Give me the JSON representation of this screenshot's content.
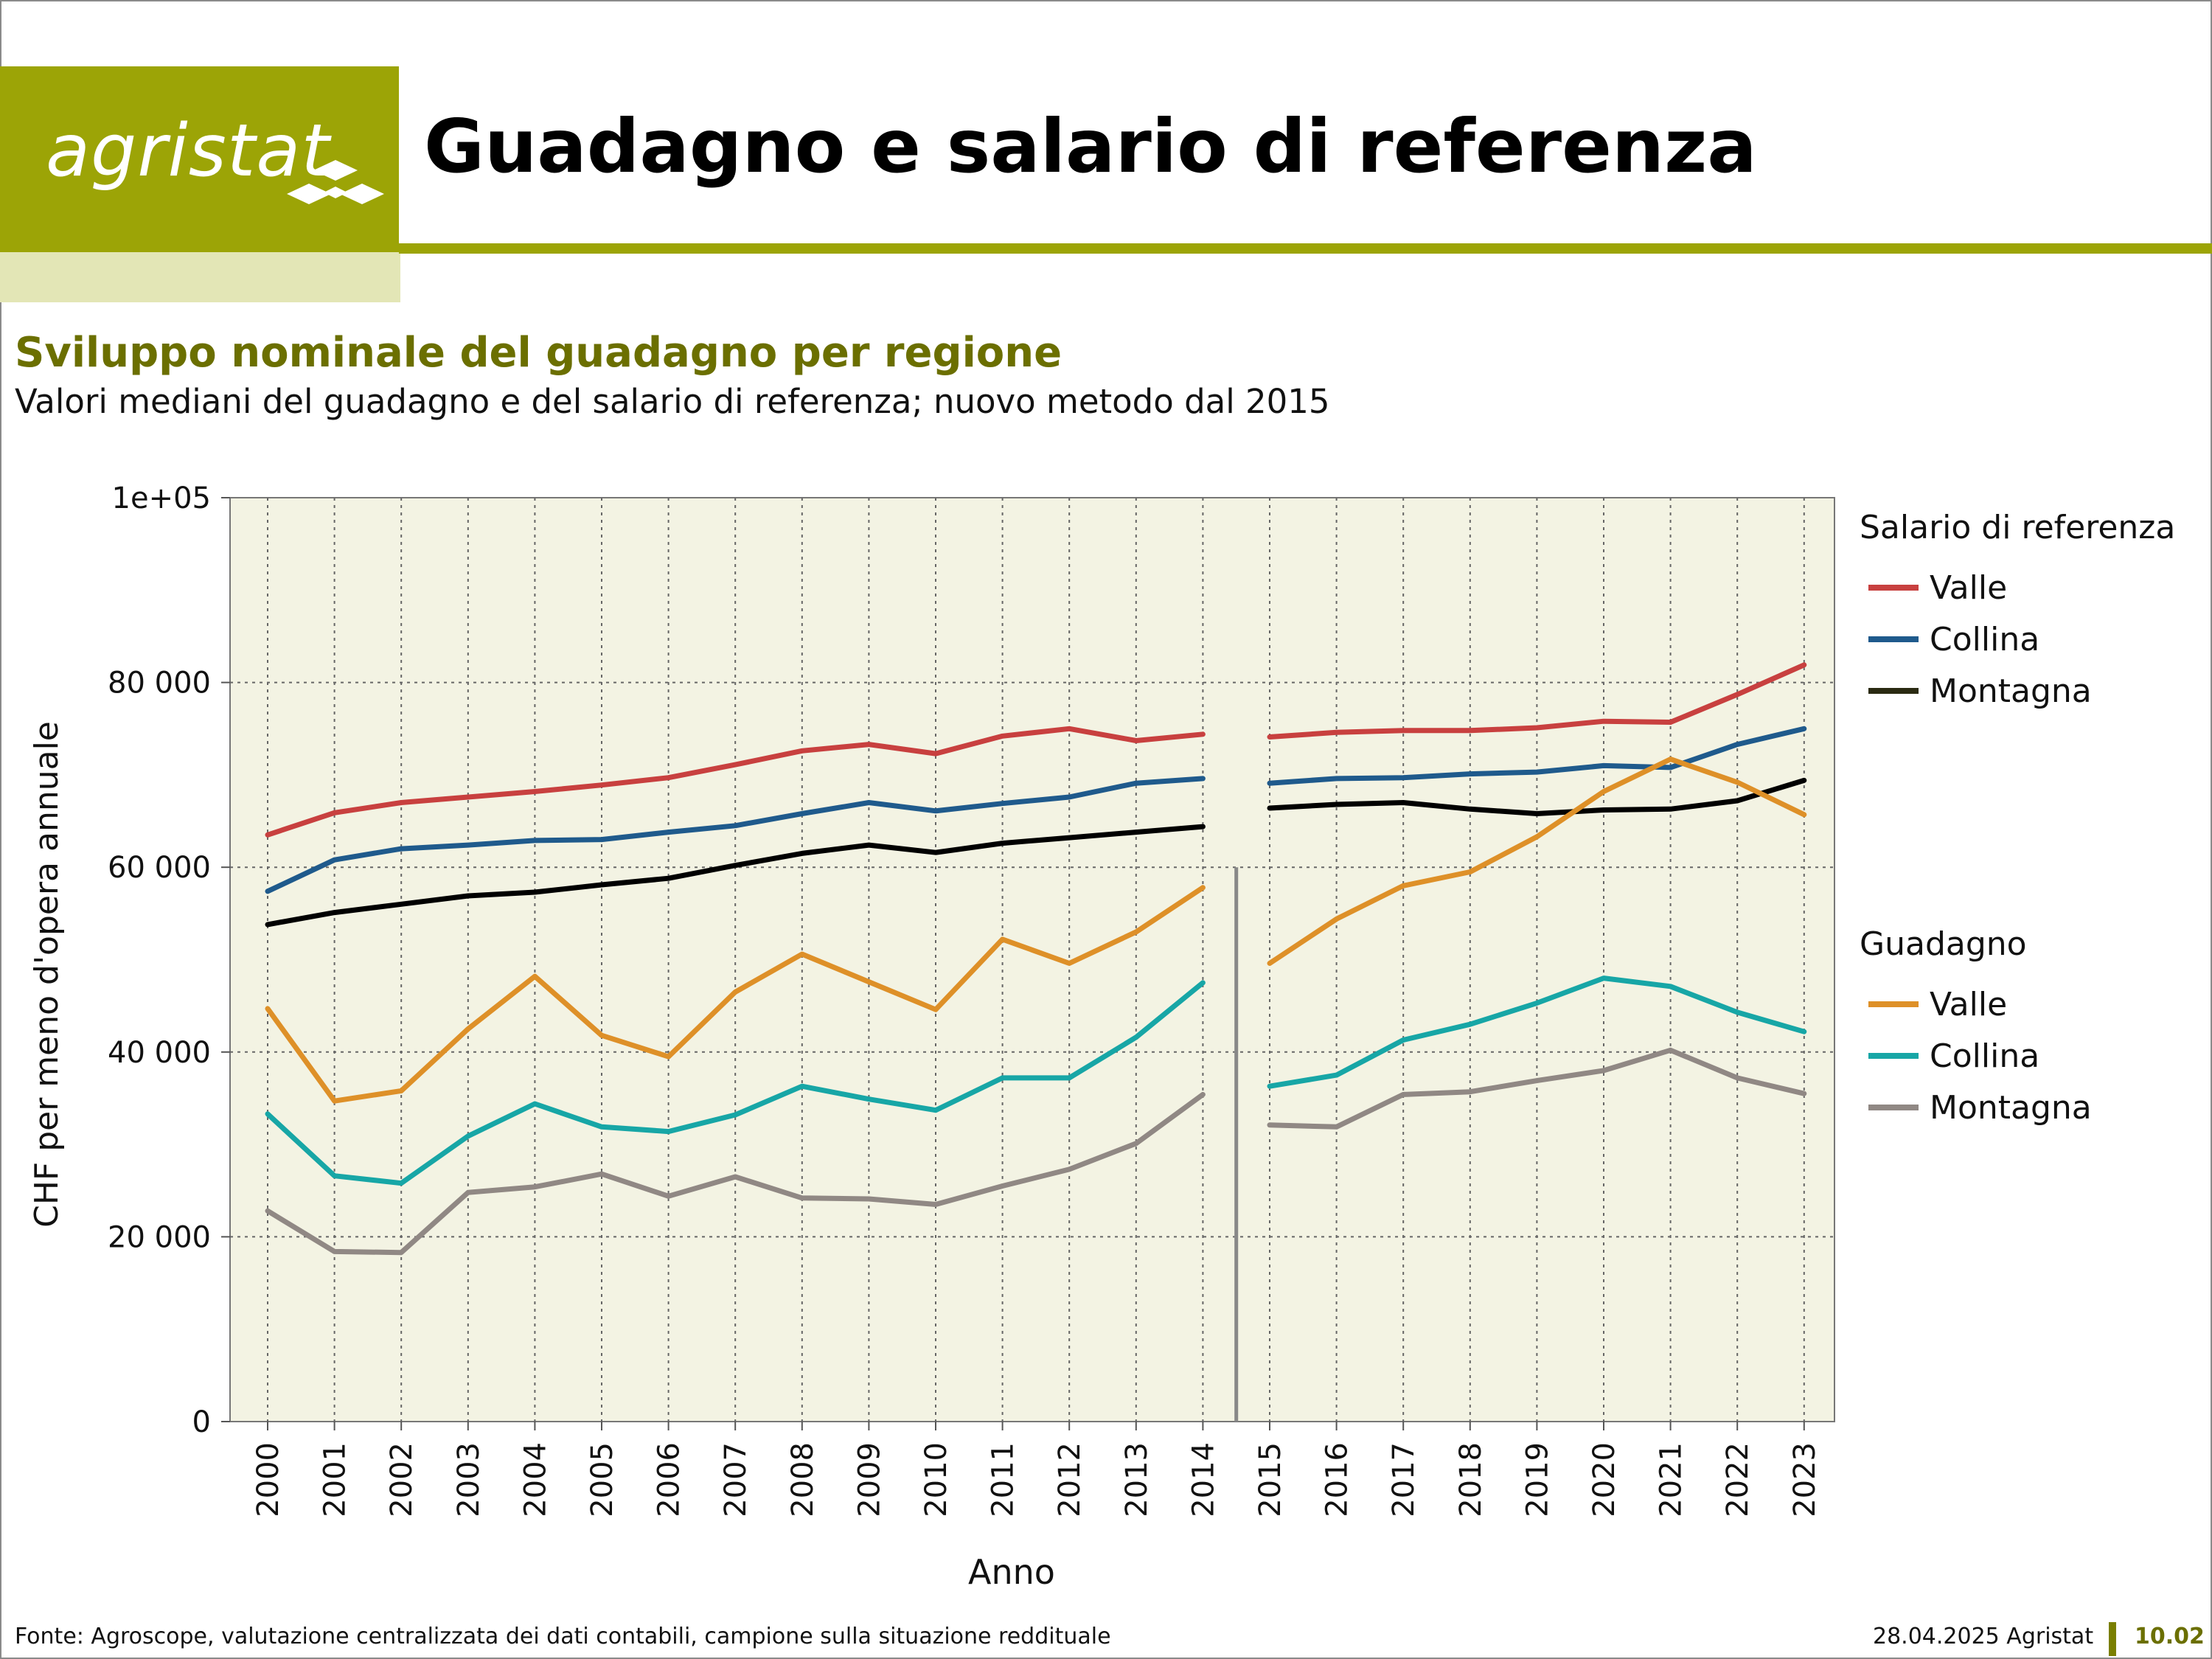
{
  "header": {
    "logo_text": "agristat",
    "title": "Guadagno e salario di referenza"
  },
  "subtitle": "Sviluppo nominale del guadagno per regione",
  "subsubtitle": "Valori mediani del guadagno e del salario di referenza; nuovo metodo dal 2015",
  "footer": {
    "source": "Fonte: Agroscope, valutazione centralizzata dei dati contabili, campione sulla situazione reddituale",
    "date_org": "28.04.2025 Agristat",
    "page_number": "10.02"
  },
  "colors": {
    "brand": "#9ca406",
    "plot_background": "#f3f3e3"
  },
  "chart_data": {
    "type": "line",
    "xlabel": "Anno",
    "ylabel": "CHF per meno d'opera annuale",
    "ylim": [
      0,
      100000
    ],
    "y_ticks": [
      0,
      20000,
      40000,
      60000,
      80000,
      100000
    ],
    "y_tick_labels": [
      "0",
      "20 000",
      "40 000",
      "60 000",
      "80 000",
      "1e+05"
    ],
    "grid": true,
    "method_break_after": "2014",
    "x": [
      "2000",
      "2001",
      "2002",
      "2003",
      "2004",
      "2005",
      "2006",
      "2007",
      "2008",
      "2009",
      "2010",
      "2011",
      "2012",
      "2013",
      "2014",
      "2015",
      "2016",
      "2017",
      "2018",
      "2019",
      "2020",
      "2021",
      "2022",
      "2023"
    ],
    "legend_groups": [
      {
        "title": "Salario di referenza",
        "series_indices": [
          0,
          1,
          2
        ]
      },
      {
        "title": "Guadagno",
        "series_indices": [
          3,
          4,
          5
        ]
      }
    ],
    "series": [
      {
        "name": "Valle",
        "color": "#c8403f",
        "values": [
          63500,
          65900,
          67000,
          67600,
          68200,
          68900,
          69700,
          71100,
          72600,
          73300,
          72300,
          74200,
          75000,
          73700,
          74400,
          74100,
          74600,
          74800,
          74800,
          75100,
          75800,
          75700,
          78700,
          81900
        ]
      },
      {
        "name": "Collina",
        "color": "#1f5a8c",
        "values": [
          57400,
          60800,
          62000,
          62400,
          62900,
          63000,
          63800,
          64500,
          65800,
          67000,
          66100,
          66900,
          67600,
          69100,
          69600,
          69100,
          69600,
          69700,
          70100,
          70300,
          71000,
          70800,
          73300,
          75000
        ]
      },
      {
        "name": "Montagna",
        "color": "#000000",
        "values": [
          53800,
          55100,
          56000,
          56900,
          57300,
          58100,
          58800,
          60200,
          61500,
          62400,
          61600,
          62600,
          63200,
          63800,
          64400,
          66400,
          66800,
          67000,
          66300,
          65800,
          66200,
          66300,
          67200,
          69400
        ]
      },
      {
        "name": "Valle",
        "color": "#de9028",
        "values": [
          44700,
          34700,
          35800,
          42500,
          48200,
          41800,
          39500,
          46500,
          50600,
          47600,
          44600,
          52200,
          49600,
          53000,
          57800,
          49600,
          54400,
          58000,
          59500,
          63300,
          68200,
          71700,
          69200,
          65700
        ]
      },
      {
        "name": "Collina",
        "color": "#17a6a6",
        "values": [
          33300,
          26600,
          25800,
          30900,
          34400,
          31900,
          31400,
          33200,
          36300,
          34900,
          33700,
          37200,
          37200,
          41600,
          47500,
          36300,
          37500,
          41300,
          43000,
          45300,
          48000,
          47100,
          44300,
          42200
        ]
      },
      {
        "name": "Montagna",
        "color": "#908884",
        "values": [
          22800,
          18400,
          18300,
          24800,
          25400,
          26800,
          24400,
          26500,
          24200,
          24100,
          23500,
          25500,
          27300,
          30100,
          35400,
          32100,
          31900,
          35400,
          35700,
          36900,
          38000,
          40200,
          37200,
          35500
        ]
      }
    ]
  }
}
